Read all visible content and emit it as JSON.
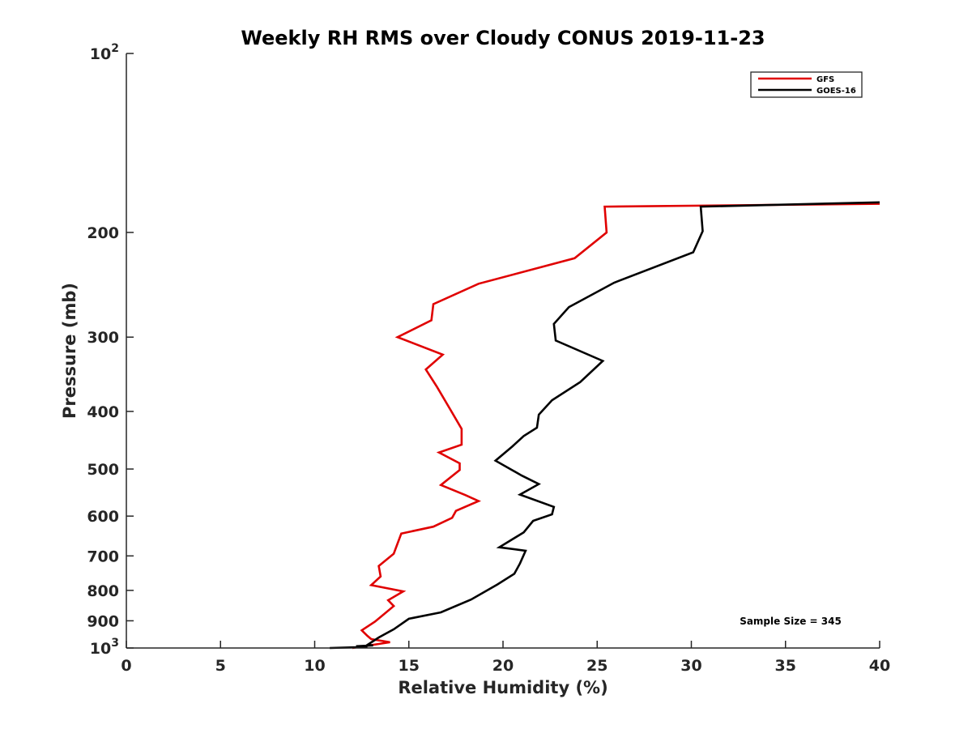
{
  "chart_data": {
    "type": "line",
    "title": "Weekly RH RMS over Cloudy CONUS 2019-11-23",
    "xlabel": "Relative Humidity (%)",
    "ylabel": "Pressure (mb)",
    "xlim": [
      0,
      40
    ],
    "ylim": [
      100,
      1000
    ],
    "y_scale": "log",
    "y_reversed": true,
    "grid": false,
    "legend_position": "top-right",
    "annotation": "Sample Size = 345",
    "x_ticks": [
      {
        "value": 0,
        "label": "0"
      },
      {
        "value": 5,
        "label": "5"
      },
      {
        "value": 10,
        "label": "10"
      },
      {
        "value": 15,
        "label": "15"
      },
      {
        "value": 20,
        "label": "20"
      },
      {
        "value": 25,
        "label": "25"
      },
      {
        "value": 30,
        "label": "30"
      },
      {
        "value": 35,
        "label": "35"
      },
      {
        "value": 40,
        "label": "40"
      }
    ],
    "y_ticks": [
      {
        "value": 100,
        "label": "10",
        "exp": "2"
      },
      {
        "value": 200,
        "label": "200"
      },
      {
        "value": 300,
        "label": "300"
      },
      {
        "value": 400,
        "label": "400"
      },
      {
        "value": 500,
        "label": "500"
      },
      {
        "value": 600,
        "label": "600"
      },
      {
        "value": 700,
        "label": "700"
      },
      {
        "value": 800,
        "label": "800"
      },
      {
        "value": 900,
        "label": "900"
      },
      {
        "value": 1000,
        "label": "10",
        "exp": "3"
      }
    ],
    "series": [
      {
        "name": "GFS",
        "color": "#e00000",
        "points": [
          [
            40.0,
            179
          ],
          [
            25.4,
            181
          ],
          [
            25.5,
            200
          ],
          [
            23.8,
            221
          ],
          [
            18.7,
            244
          ],
          [
            16.3,
            264
          ],
          [
            16.2,
            281
          ],
          [
            14.4,
            300
          ],
          [
            16.8,
            321
          ],
          [
            15.9,
            340
          ],
          [
            16.5,
            364
          ],
          [
            17.2,
            397
          ],
          [
            17.8,
            428
          ],
          [
            17.8,
            455
          ],
          [
            16.6,
            469
          ],
          [
            17.7,
            489
          ],
          [
            17.7,
            502
          ],
          [
            16.7,
            532
          ],
          [
            18.0,
            553
          ],
          [
            18.7,
            566
          ],
          [
            17.5,
            588
          ],
          [
            17.3,
            604
          ],
          [
            16.3,
            625
          ],
          [
            14.6,
            642
          ],
          [
            14.2,
            694
          ],
          [
            13.4,
            728
          ],
          [
            13.5,
            758
          ],
          [
            13.0,
            784
          ],
          [
            14.7,
            803
          ],
          [
            13.9,
            831
          ],
          [
            14.2,
            850
          ],
          [
            13.2,
            903
          ],
          [
            12.5,
            934
          ],
          [
            12.8,
            954
          ],
          [
            13.0,
            966
          ],
          [
            14.0,
            978
          ],
          [
            12.0,
            1000
          ]
        ]
      },
      {
        "name": "GOES-16",
        "color": "#000000",
        "points": [
          [
            40.0,
            178
          ],
          [
            30.5,
            181
          ],
          [
            30.6,
            199
          ],
          [
            30.1,
            216
          ],
          [
            25.9,
            243
          ],
          [
            23.5,
            267
          ],
          [
            22.7,
            285
          ],
          [
            22.8,
            304
          ],
          [
            25.3,
            329
          ],
          [
            24.1,
            357
          ],
          [
            22.6,
            383
          ],
          [
            21.9,
            405
          ],
          [
            21.8,
            426
          ],
          [
            21.1,
            440
          ],
          [
            20.5,
            458
          ],
          [
            19.6,
            484
          ],
          [
            21.0,
            513
          ],
          [
            21.9,
            530
          ],
          [
            20.9,
            552
          ],
          [
            22.7,
            579
          ],
          [
            22.6,
            596
          ],
          [
            21.6,
            611
          ],
          [
            21.1,
            639
          ],
          [
            19.8,
            677
          ],
          [
            21.2,
            686
          ],
          [
            20.9,
            721
          ],
          [
            20.6,
            750
          ],
          [
            19.7,
            782
          ],
          [
            18.3,
            829
          ],
          [
            16.7,
            871
          ],
          [
            15.0,
            893
          ],
          [
            14.2,
            930
          ],
          [
            13.4,
            960
          ],
          [
            12.8,
            988
          ],
          [
            13.1,
            990
          ],
          [
            12.2,
            993
          ],
          [
            12.8,
            996
          ],
          [
            10.8,
            1000
          ]
        ]
      }
    ]
  }
}
